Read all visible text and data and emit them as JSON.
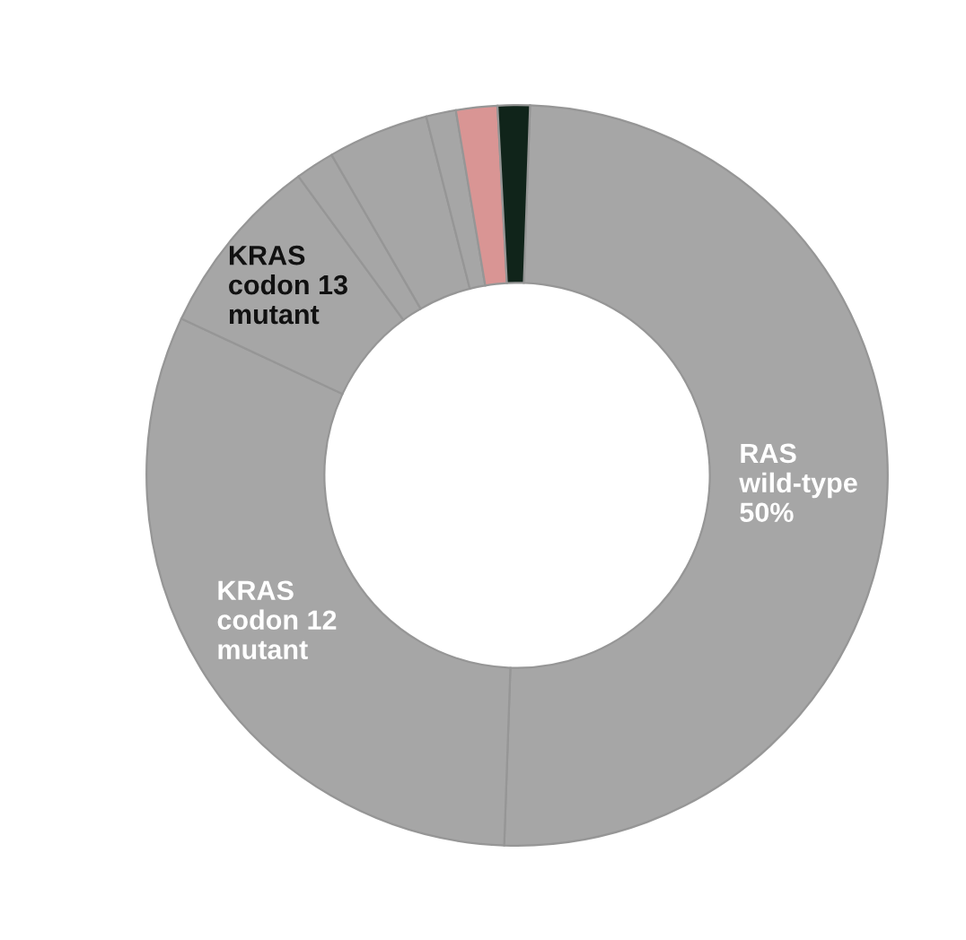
{
  "chart_data": {
    "type": "donut",
    "categories": [
      "RAS\nwild-type",
      "KRAS\ncodon 12\nmutant",
      "KRAS\ncodon 13\nmutant",
      null,
      null,
      null,
      null,
      null
    ],
    "values": [
      50,
      31.4,
      8,
      1.7,
      4.4,
      1.3,
      1.8,
      1.4
    ],
    "value_labels": [
      "50%",
      null,
      null,
      null,
      null,
      null,
      null,
      null
    ],
    "colors": [
      "#a6a6a6",
      "#a6a6a6",
      "#a6a6a6",
      "#a6a6a6",
      "#a6a6a6",
      "#a6a6a6",
      "#d99594",
      "#10241a"
    ]
  }
}
